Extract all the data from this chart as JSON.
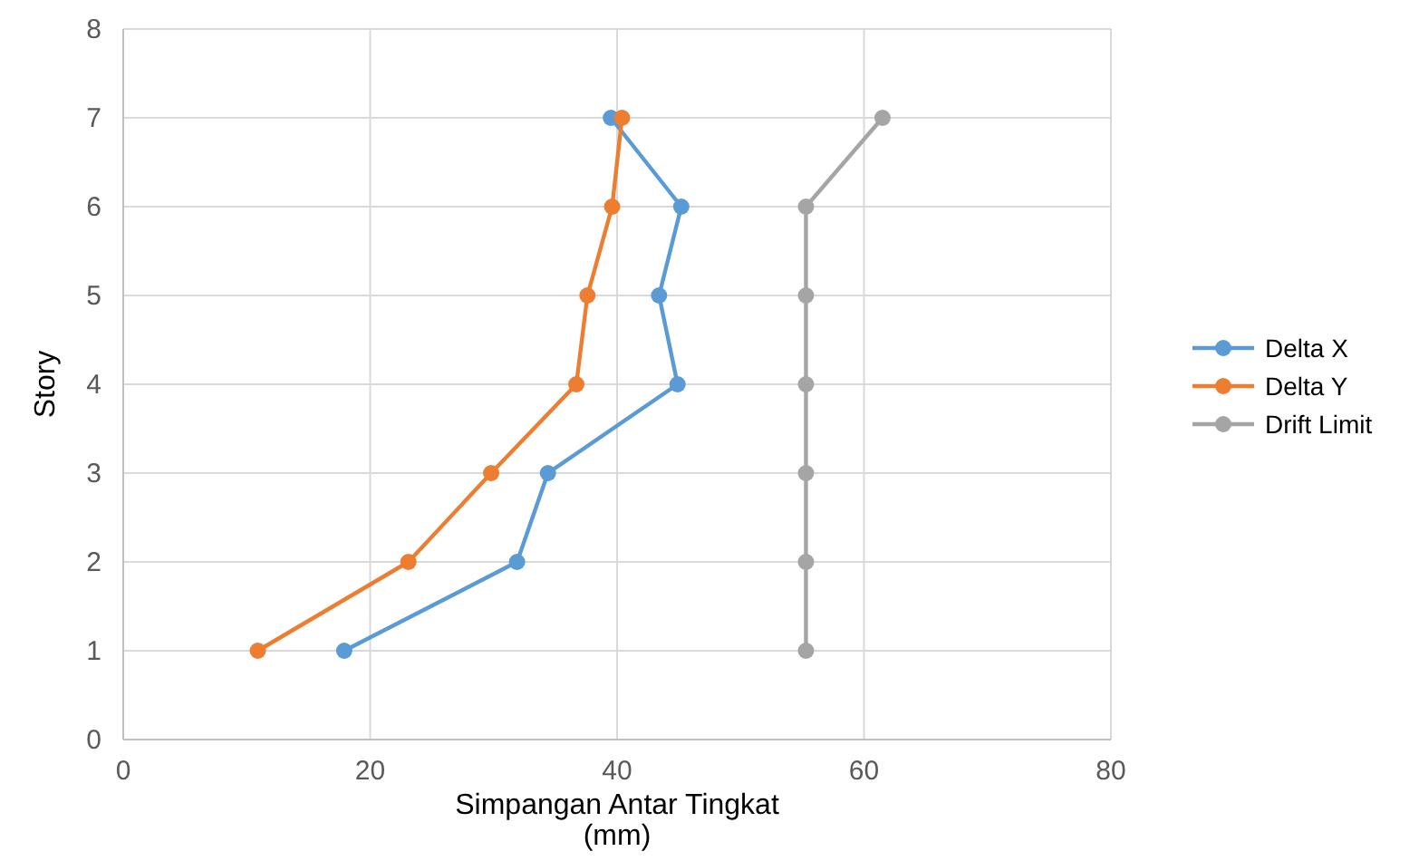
{
  "chart_data": {
    "type": "line",
    "xlabel": "Simpangan Antar Tingkat\n(mm)",
    "ylabel": "Story",
    "xlim": [
      0,
      80
    ],
    "xticks": [
      0,
      20,
      40,
      60,
      80
    ],
    "ylim": [
      0,
      8
    ],
    "yticks": [
      0,
      1,
      2,
      3,
      4,
      5,
      6,
      7,
      8
    ],
    "grid": true,
    "legend": "right",
    "marker": "circle",
    "series": [
      {
        "name": "Delta X",
        "color": "#5b9bd5",
        "x": [
          17.9,
          31.9,
          34.4,
          44.9,
          43.4,
          45.2,
          39.5
        ],
        "values": [
          1,
          2,
          3,
          4,
          5,
          6,
          7
        ]
      },
      {
        "name": "Delta Y",
        "color": "#ed7d31",
        "x": [
          10.9,
          23.1,
          29.8,
          36.7,
          37.6,
          39.6,
          40.4
        ],
        "values": [
          1,
          2,
          3,
          4,
          5,
          6,
          7
        ]
      },
      {
        "name": "Drift Limit",
        "color": "#a5a5a5",
        "x": [
          55.3,
          55.3,
          55.3,
          55.3,
          55.3,
          55.3,
          61.5
        ],
        "values": [
          1,
          2,
          3,
          4,
          5,
          6,
          7
        ]
      }
    ]
  }
}
